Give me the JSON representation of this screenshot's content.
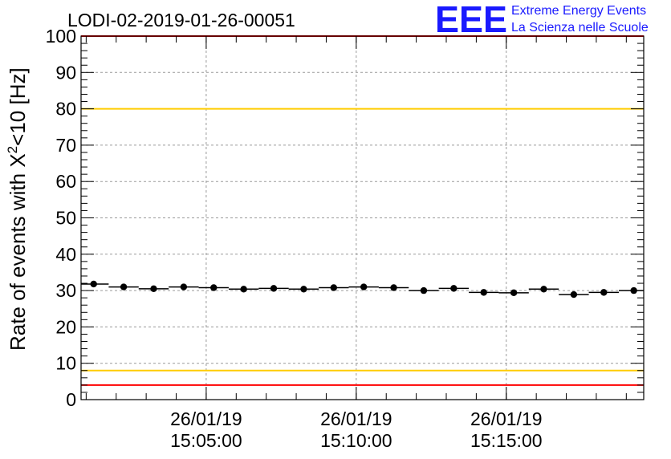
{
  "chart_data": {
    "type": "scatter",
    "title": "LODI-02-2019-01-26-00051",
    "ylabel_main": "Rate of events with X",
    "ylabel_sup": "2",
    "ylabel_tail": "<10 [Hz]",
    "ylim": [
      0,
      100
    ],
    "y_ticks": [
      "0",
      "10",
      "20",
      "30",
      "40",
      "50",
      "60",
      "70",
      "80",
      "90",
      "100"
    ],
    "x_range_minutes": [
      0,
      18.75
    ],
    "x_tick_labels": [
      {
        "date": "26/01/19",
        "time": "15:05:00",
        "minute": 4.17
      },
      {
        "date": "26/01/19",
        "time": "15:10:00",
        "minute": 9.17
      },
      {
        "date": "26/01/19",
        "time": "15:15:00",
        "minute": 14.17
      }
    ],
    "grid": true,
    "bin_width_minutes": 1.0,
    "x": [
      0.42,
      1.42,
      2.42,
      3.42,
      4.42,
      5.42,
      6.42,
      7.42,
      8.42,
      9.42,
      10.42,
      11.42,
      12.42,
      13.42,
      14.42,
      15.42,
      16.42,
      17.42,
      18.42
    ],
    "values": [
      31.8,
      31.0,
      30.5,
      31.0,
      30.8,
      30.4,
      30.6,
      30.4,
      30.8,
      31.0,
      30.8,
      30.0,
      30.6,
      29.5,
      29.4,
      30.4,
      28.9,
      29.5,
      30.0
    ],
    "reference_lines": [
      {
        "name": "upper-red",
        "value": 100,
        "color": "#ff0000"
      },
      {
        "name": "upper-yellow",
        "value": 80,
        "color": "#ffcc00"
      },
      {
        "name": "lower-yellow",
        "value": 8,
        "color": "#ffcc00"
      },
      {
        "name": "lower-red",
        "value": 4,
        "color": "#ff0000"
      }
    ]
  },
  "logo": {
    "mark": "EEE",
    "line1": "Extreme Energy Events",
    "line2": "La Scienza nelle Scuole",
    "color": "#1a1aff"
  }
}
